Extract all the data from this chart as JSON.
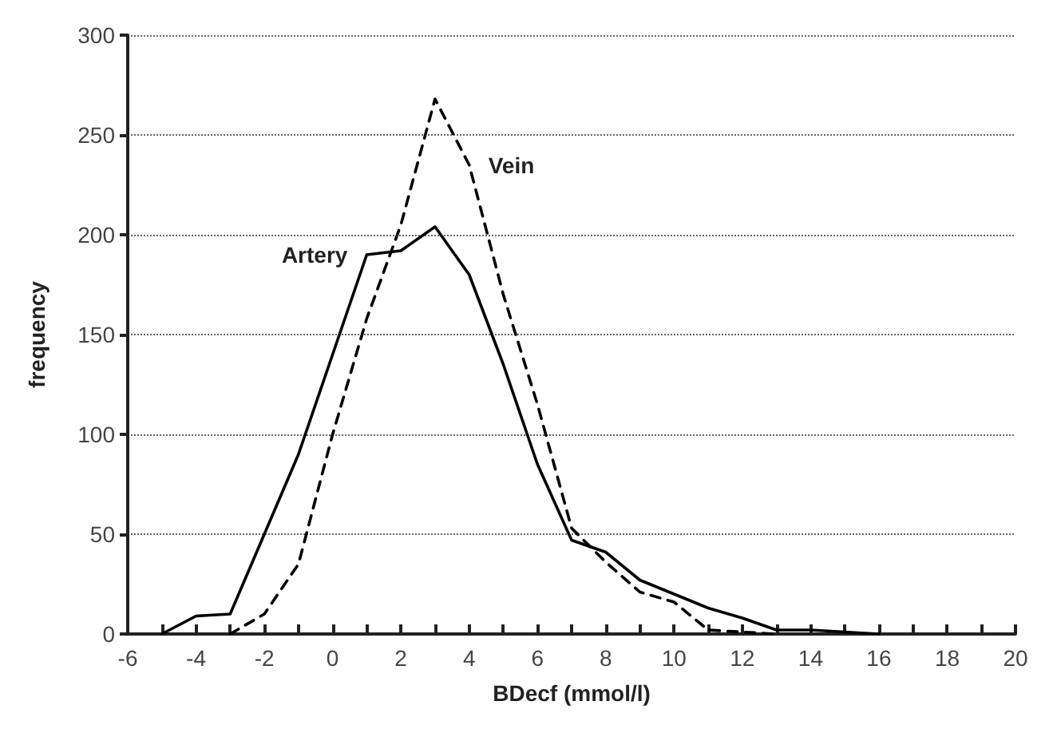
{
  "chart_data": {
    "type": "line",
    "xlabel": "BDecf (mmol/l)",
    "ylabel": "frequency",
    "xlim": [
      -6,
      20
    ],
    "xticks": [
      -6,
      {
        "value": -5,
        "label": null
      },
      -4,
      {
        "value": -3,
        "label": null
      },
      -2,
      {
        "value": -1,
        "label": null
      },
      0,
      {
        "value": 1,
        "label": null
      },
      2,
      {
        "value": 3,
        "label": null
      },
      4,
      {
        "value": 5,
        "label": null
      },
      6,
      {
        "value": 7,
        "label": null
      },
      8,
      {
        "value": 9,
        "label": null
      },
      10,
      {
        "value": 11,
        "label": null
      },
      12,
      {
        "value": 13,
        "label": null
      },
      14,
      {
        "value": 15,
        "label": null
      },
      16,
      {
        "value": 17,
        "label": null
      },
      18,
      {
        "value": 19,
        "label": null
      },
      20
    ],
    "ylim": [
      0,
      300
    ],
    "yticks": [
      0,
      50,
      100,
      150,
      200,
      250,
      300
    ],
    "grid": "y",
    "legend": false,
    "marker": "none",
    "series": [
      {
        "name": "Artery",
        "color": "#000000",
        "line_style": "solid",
        "x": [
          -5,
          -4,
          -3,
          -2,
          -1,
          0,
          1,
          2,
          3,
          4,
          5,
          6,
          7,
          8,
          9,
          10,
          11,
          12,
          13,
          14,
          15,
          16
        ],
        "values": [
          0,
          9,
          10,
          50,
          90,
          140,
          190,
          192,
          204,
          180,
          135,
          85,
          47,
          41,
          27,
          20,
          13,
          8,
          2,
          2,
          1,
          0
        ]
      },
      {
        "name": "Vein",
        "color": "#000000",
        "line_style": "dashed",
        "x": [
          -3,
          -2,
          -1,
          0,
          1,
          2,
          3,
          4,
          5,
          6,
          7,
          8,
          9,
          10,
          11,
          12,
          13
        ],
        "values": [
          0,
          10,
          35,
          100,
          158,
          205,
          268,
          235,
          170,
          115,
          53,
          36,
          21,
          16,
          2,
          1,
          0
        ]
      }
    ]
  }
}
